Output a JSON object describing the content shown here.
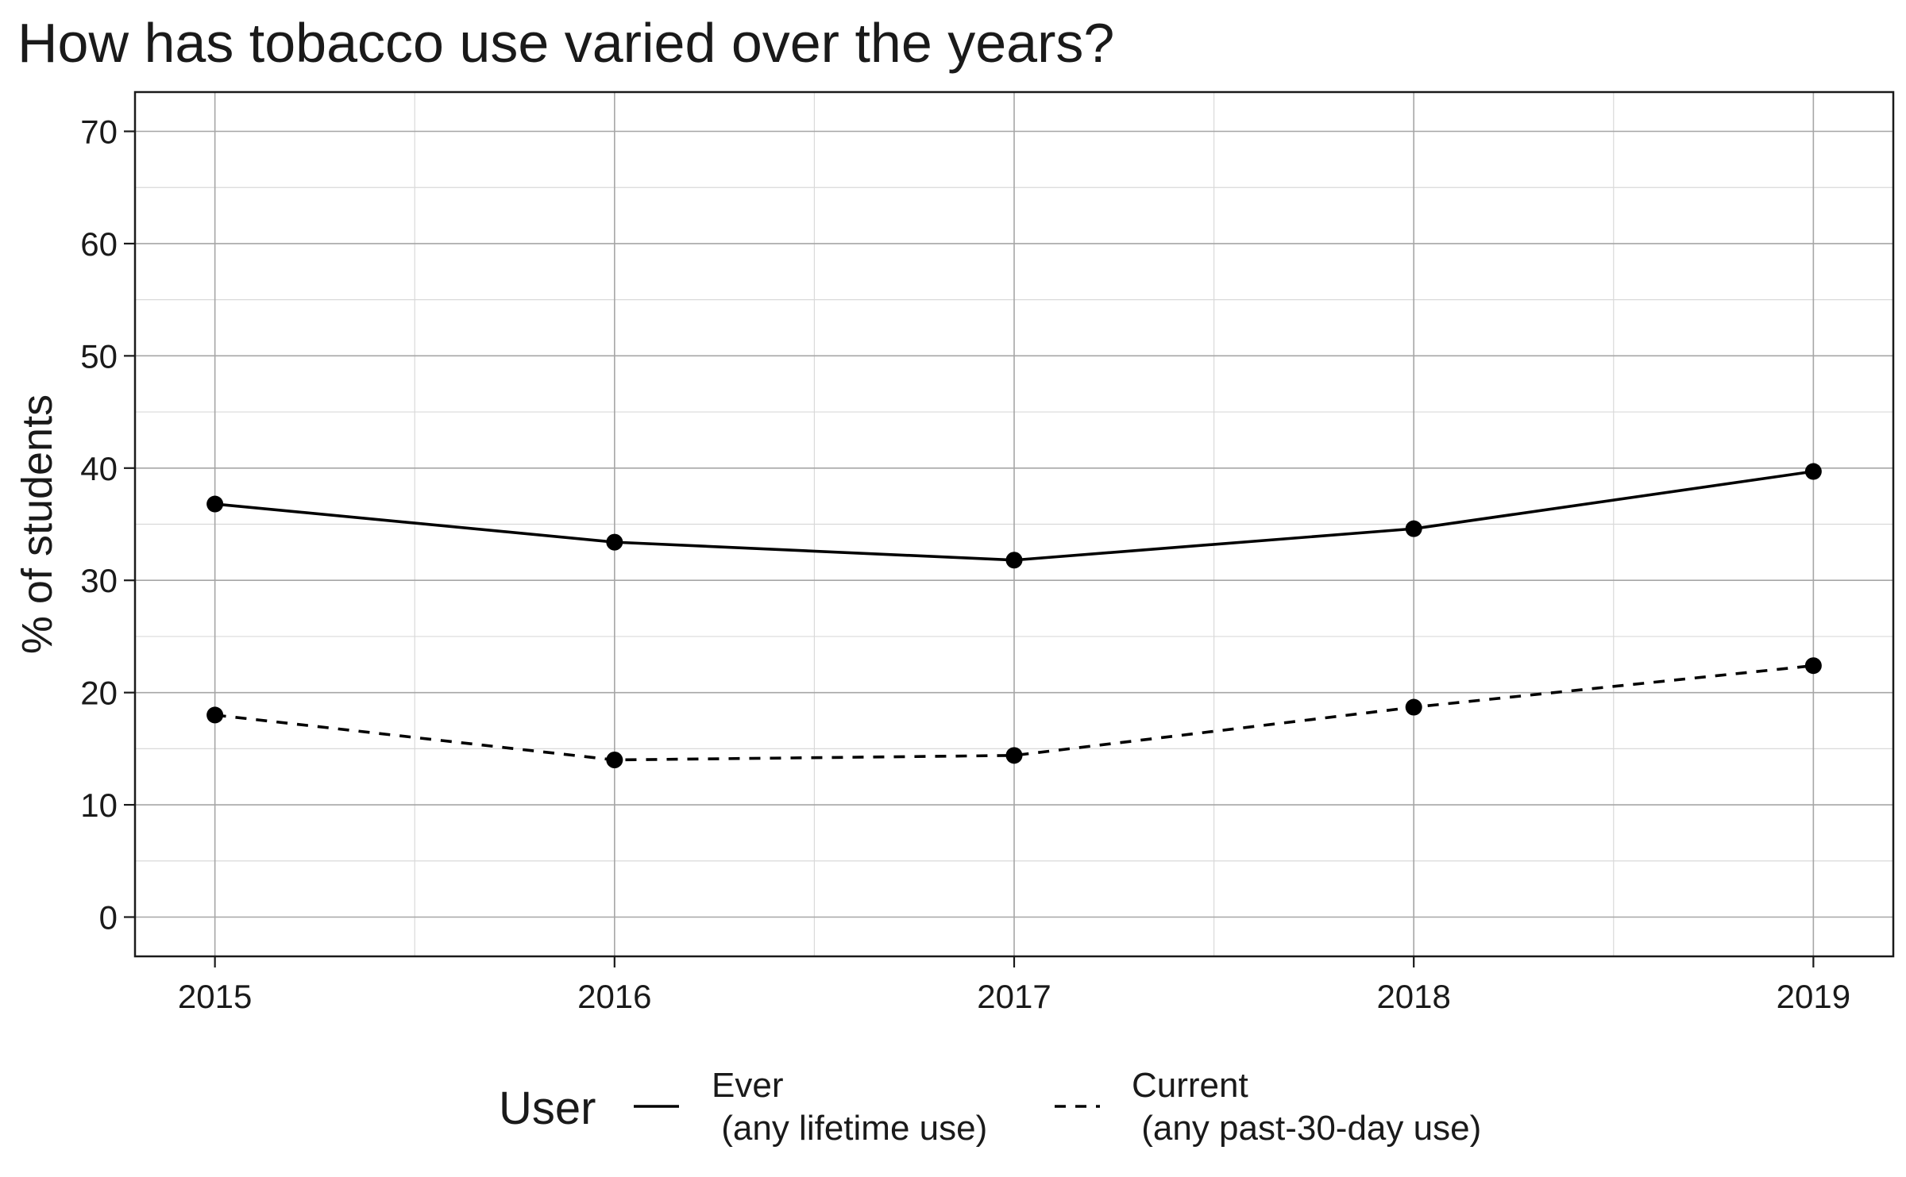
{
  "chart_data": {
    "type": "line",
    "title": "How has tobacco use varied over the years?",
    "xlabel": "",
    "ylabel": "% of students",
    "x": [
      2015,
      2016,
      2017,
      2018,
      2019
    ],
    "x_tick_labels": [
      "2015",
      "2016",
      "2017",
      "2018",
      "2019"
    ],
    "y_ticks": [
      0,
      10,
      20,
      30,
      40,
      50,
      60,
      70
    ],
    "y_tick_labels": [
      "0",
      "10",
      "20",
      "30",
      "40",
      "50",
      "60",
      "70"
    ],
    "xlim": [
      2014.8,
      2019.2
    ],
    "ylim": [
      -3.5,
      73.5
    ],
    "grid": true,
    "legend": {
      "title": "User",
      "placement": "bottom",
      "entries": [
        {
          "line1": "Ever",
          "line2": " (any lifetime use)",
          "style": "solid"
        },
        {
          "line1": "Current",
          "line2": " (any past-30-day use)",
          "style": "dashed"
        }
      ]
    },
    "series": [
      {
        "key": "ever",
        "style": "solid",
        "values": [
          36.8,
          33.4,
          31.8,
          34.6,
          39.7
        ]
      },
      {
        "key": "current",
        "style": "dashed",
        "values": [
          18.0,
          14.0,
          14.4,
          18.7,
          22.4
        ]
      }
    ]
  }
}
